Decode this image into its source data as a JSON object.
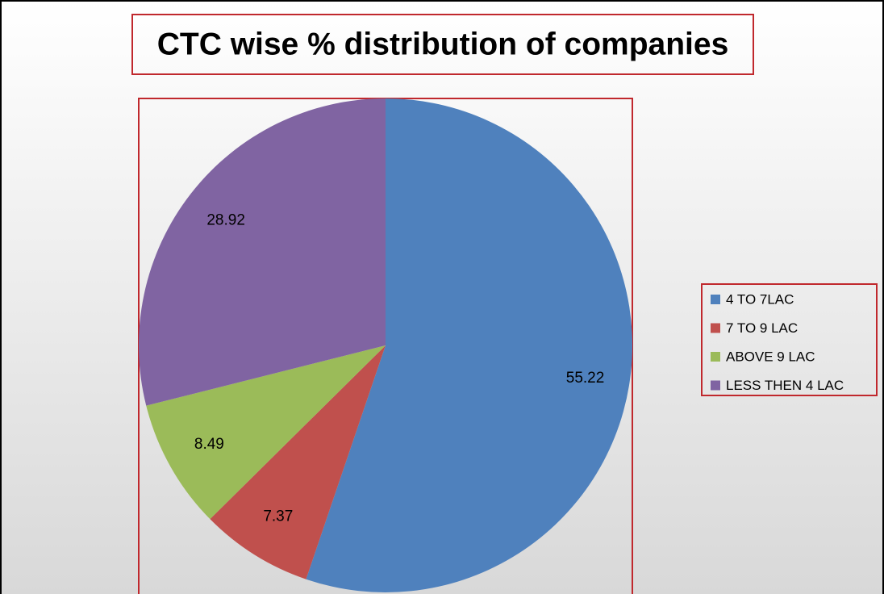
{
  "chart_data": {
    "type": "pie",
    "title": "CTC wise % distribution of companies",
    "categories": [
      "4 TO 7LAC",
      "7 TO 9 LAC",
      "ABOVE 9 LAC",
      "LESS THEN 4 LAC"
    ],
    "values": [
      55.22,
      7.37,
      8.49,
      28.92
    ],
    "colors": [
      "#4f81bd",
      "#c0504d",
      "#9bbb59",
      "#8064a2"
    ],
    "legend": "right"
  }
}
